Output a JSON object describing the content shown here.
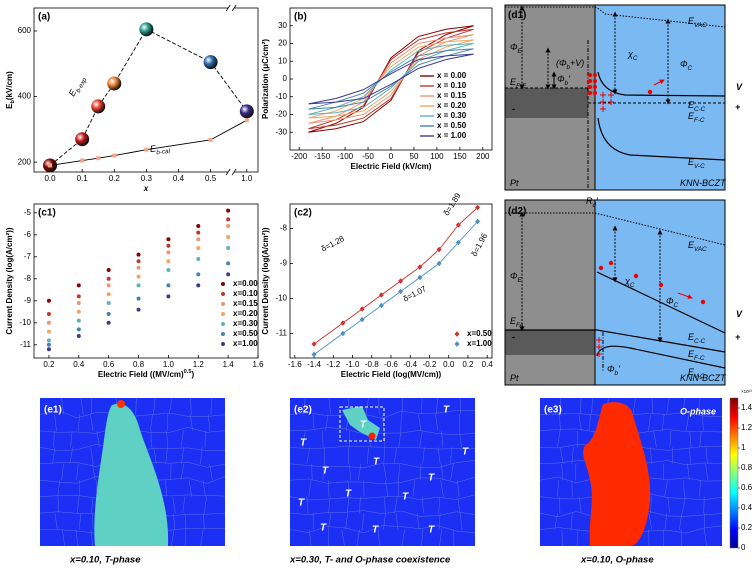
{
  "chart_data": [
    {
      "type": "line",
      "label": "(a)",
      "xlabel": "x",
      "ylabel": {
        "t": "E",
        "s": "b",
        "r": "(kV/cm)"
      },
      "xlim": [
        -0.05,
        1.05
      ],
      "x_break": [
        0.55,
        0.95
      ],
      "xticks": [
        {
          "value": 0,
          "label": "0.0"
        },
        0.1,
        0.2,
        0.3,
        0.4,
        0.5,
        {
          "value": 1,
          "label": "1.0"
        }
      ],
      "ylim": [
        170,
        670
      ],
      "yticks": [
        200,
        400,
        600
      ],
      "x": [
        0,
        0.1,
        0.15,
        0.2,
        0.3,
        0.5,
        1.0
      ],
      "series": [
        {
          "label": {
            "t": "E",
            "s": "b-exp"
          },
          "color": "#000000",
          "dash": true,
          "marker": "sphere",
          "point_colors": [
            "#8b0000",
            "#c81e1e",
            "#e8412e",
            "#f08030",
            "#2a9d8f",
            "#2b6cb0",
            "#3b2a8a"
          ],
          "values": [
            190,
            270,
            370,
            440,
            605,
            505,
            355
          ]
        },
        {
          "label": {
            "t": "E",
            "s": "b-cal"
          },
          "color": "#000000",
          "marker": "square",
          "marker_color": "#f4a582",
          "values": [
            190,
            205,
            212,
            220,
            238,
            268,
            328
          ]
        }
      ]
    },
    {
      "type": "line",
      "label": "(b)",
      "xlabel": "Electric Field (kV/cm)",
      "ylabel": "Polarization (μC/cm²)",
      "xlim": [
        -220,
        220
      ],
      "xticks": [
        -200,
        -150,
        -100,
        -50,
        0,
        50,
        100,
        150,
        200
      ],
      "ylim": [
        -40,
        40
      ],
      "yticks": [
        -30,
        -20,
        -10,
        0,
        10,
        20,
        30
      ],
      "legend": "lower right",
      "x": [
        -180,
        -120,
        -60,
        0,
        60,
        120,
        180,
        120,
        60,
        0,
        -60,
        -120,
        -180
      ],
      "series": [
        {
          "name": "x = 0.00",
          "color": "#8b0000",
          "values": [
            -30,
            -28,
            -24,
            -12,
            16,
            25,
            30,
            28,
            24,
            12,
            -16,
            -25,
            -30
          ]
        },
        {
          "name": "x = 0.10",
          "color": "#c0392b",
          "values": [
            -28,
            -26,
            -22,
            -11,
            15,
            23,
            28,
            26,
            22,
            11,
            -15,
            -23,
            -28
          ]
        },
        {
          "name": "x = 0.15",
          "color": "#e9967a",
          "values": [
            -25,
            -23,
            -20,
            -9,
            13,
            21,
            25,
            23,
            20,
            9,
            -13,
            -21,
            -25
          ]
        },
        {
          "name": "x = 0.20",
          "color": "#f4a460",
          "values": [
            -22,
            -21,
            -18,
            -7,
            11,
            18,
            22,
            21,
            18,
            7,
            -11,
            -18,
            -22
          ]
        },
        {
          "name": "x = 0.30",
          "color": "#5fb3b3",
          "values": [
            -20,
            -19,
            -16,
            -5,
            10,
            16,
            20,
            19,
            16,
            5,
            -10,
            -16,
            -20
          ]
        },
        {
          "name": "x = 0.50",
          "color": "#4682b4",
          "values": [
            -17,
            -16,
            -13,
            -4,
            8,
            13,
            17,
            16,
            13,
            4,
            -8,
            -13,
            -17
          ]
        },
        {
          "name": "x = 1.00",
          "color": "#3b3b8f",
          "values": [
            -14,
            -13,
            -11,
            -3,
            6,
            11,
            14,
            13,
            11,
            3,
            -6,
            -11,
            -14
          ]
        }
      ]
    },
    {
      "type": "scatter",
      "label": "(c1)",
      "marker": "circle",
      "xlabel": {
        "t": "Electric Field ((MV/cm)",
        "sup": "0.5",
        "r": ")"
      },
      "ylabel": "Current Density (log(A/cm²))",
      "xlim": [
        0.1,
        1.6
      ],
      "xticks": [
        0.2,
        0.4,
        0.6,
        0.8,
        {
          "value": 1,
          "label": "1.0"
        },
        1.2,
        1.4,
        1.6
      ],
      "ylim": [
        -11.6,
        -4.6
      ],
      "yticks": [
        -11,
        -10,
        -9,
        -8,
        -7,
        -6,
        -5
      ],
      "legend": "lower right",
      "x": [
        0.2,
        0.4,
        0.6,
        0.8,
        1.0,
        1.2,
        1.4
      ],
      "series": [
        {
          "name": "x=0.00",
          "color": "#8b0000",
          "values": [
            -9.0,
            -8.3,
            -7.6,
            -6.9,
            -6.2,
            -5.6,
            -4.9
          ]
        },
        {
          "name": "x=0.10",
          "color": "#c0392b",
          "values": [
            -9.6,
            -8.8,
            -8.0,
            -7.2,
            -6.5,
            -5.9,
            -5.3
          ]
        },
        {
          "name": "x=0.15",
          "color": "#e9967a",
          "values": [
            -10.0,
            -9.1,
            -8.3,
            -7.5,
            -6.8,
            -6.2,
            -5.6
          ]
        },
        {
          "name": "x=0.20",
          "color": "#f4a460",
          "values": [
            -10.4,
            -9.5,
            -8.7,
            -7.9,
            -7.2,
            -6.6,
            -6.1
          ]
        },
        {
          "name": "x=0.30",
          "color": "#5fb3b3",
          "values": [
            -10.8,
            -9.9,
            -9.1,
            -8.3,
            -7.6,
            -7.1,
            -6.6
          ]
        },
        {
          "name": "x=0.50",
          "color": "#4682b4",
          "values": [
            -11.0,
            -10.3,
            -9.6,
            -8.9,
            -8.3,
            -7.8,
            -7.3
          ]
        },
        {
          "name": "x=1.00",
          "color": "#3b3b8f",
          "values": [
            -11.2,
            -10.6,
            -10.0,
            -9.4,
            -8.8,
            -8.3,
            -7.8
          ]
        }
      ]
    },
    {
      "type": "scatter",
      "label": "(c2)",
      "marker": "diamond",
      "fit": true,
      "xlabel": "Electric Field (log(MV/cm))",
      "ylabel": "Current Density (log(A/cm²))",
      "xlim": [
        -1.65,
        0.45
      ],
      "xticks": [
        -1.6,
        -1.4,
        -1.2,
        {
          "value": -1,
          "label": "-1.0"
        },
        -0.8,
        -0.6,
        -0.4,
        -0.2,
        {
          "value": 0,
          "label": "0.0"
        },
        0.2,
        0.4
      ],
      "ylim": [
        -11.7,
        -7.3
      ],
      "yticks": [
        -11,
        -10,
        -9,
        -8
      ],
      "legend": "lower right",
      "x": [
        -1.4,
        -1.1,
        -0.9,
        -0.7,
        -0.5,
        -0.3,
        -0.1,
        0.1,
        0.3
      ],
      "series": [
        {
          "name": "x=0.50",
          "color": "#d0312d",
          "values": [
            -11.3,
            -10.7,
            -10.3,
            -9.9,
            -9.5,
            -9.1,
            -8.6,
            -7.9,
            -7.4
          ]
        },
        {
          "name": "x=1.00",
          "color": "#4a90c0",
          "values": [
            -11.6,
            -11.0,
            -10.6,
            -10.2,
            -9.8,
            -9.4,
            -9.0,
            -8.4,
            -7.8
          ]
        }
      ],
      "annotations": [
        {
          "text": "δ=1.28",
          "color": "#d0312d"
        },
        {
          "text": "δ=1.89",
          "color": "#d0312d"
        },
        {
          "text": "δ=1.07",
          "color": "#4a90c0"
        },
        {
          "text": "δ=1.96",
          "color": "#4a90c0"
        }
      ]
    }
  ],
  "band_diagrams": [
    {
      "labels": [
        {
          "t": "(d1)"
        },
        {
          "t": "E",
          "s": "VAC"
        },
        {
          "t": "Φ",
          "s": "E"
        },
        {
          "t": "(Φ",
          "s": "b",
          "r": "+V)"
        },
        {
          "t": "Φ",
          "s": "b",
          "r": "'"
        },
        {
          "t": "χ",
          "s": "C"
        },
        {
          "t": "Φ",
          "s": "C"
        },
        {
          "t": "E",
          "s": "F-E"
        },
        {
          "t": "E",
          "s": "C-C"
        },
        {
          "t": "E",
          "s": "F-C"
        },
        {
          "t": "E",
          "s": "V-C"
        },
        {
          "t": "V"
        },
        {
          "t": "-"
        },
        {
          "t": "+"
        },
        {
          "t": "Pt"
        },
        {
          "t": "KNN-BCZT"
        },
        {
          "t": "R",
          "s": "d",
          "r": "'"
        }
      ]
    },
    {
      "labels": [
        {
          "t": "(d2)"
        },
        {
          "t": "E",
          "s": "VAC"
        },
        {
          "t": "Φ",
          "s": "E"
        },
        {
          "t": "χ",
          "s": "C"
        },
        {
          "t": "Φ",
          "s": "C"
        },
        {
          "t": "E",
          "s": "FA"
        },
        {
          "t": "E",
          "s": "C-C"
        },
        {
          "t": "E",
          "s": "F-C"
        },
        {
          "t": "E",
          "s": "V-C"
        },
        {
          "t": "V"
        },
        {
          "t": "-"
        },
        {
          "t": "+"
        },
        {
          "t": "Pt"
        },
        {
          "t": "KNN-BCZT"
        },
        {
          "t": "Φ",
          "s": "b",
          "r": "'"
        }
      ]
    }
  ],
  "maps": [
    {
      "label": "(e1)",
      "caption": "x=0.10, T-phase"
    },
    {
      "label": "(e2)",
      "caption": "x=0.30, T- and O-phase coexistence",
      "phase_labels": [
        "T",
        "T",
        "T",
        "T",
        "T",
        "T",
        "T",
        "T",
        "T",
        "T",
        "T",
        "T",
        "T"
      ]
    },
    {
      "label": "(e3)",
      "caption": "x=0.10, O-phase",
      "phase_label": "O-phase"
    }
  ],
  "colorbar": {
    "lim": [
      0,
      1.5
    ],
    "ticks": [
      0,
      0.2,
      0.4,
      0.6,
      0.8,
      1,
      1.2,
      1.4
    ],
    "scale": "×10¹³"
  }
}
